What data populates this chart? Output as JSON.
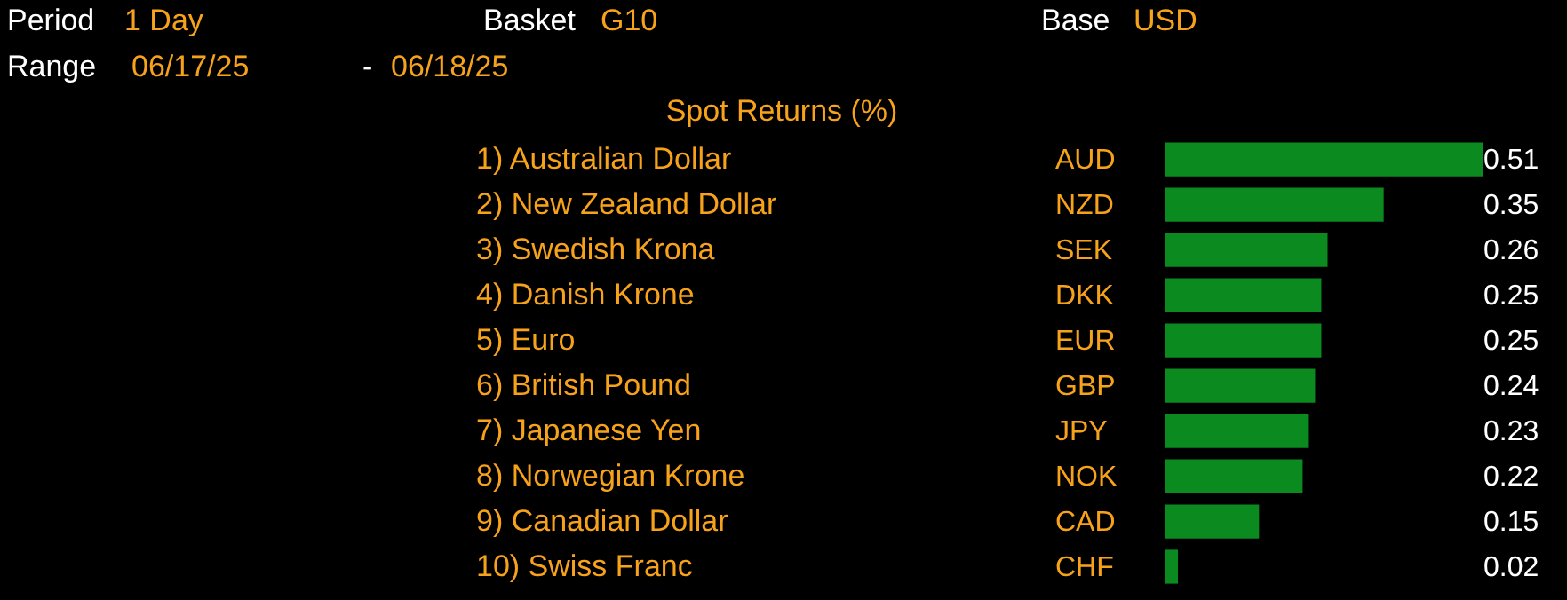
{
  "chart_data": {
    "type": "bar",
    "orientation": "horizontal",
    "title": "Spot Returns (%)",
    "categories": [
      "1) Australian Dollar",
      "2) New Zealand Dollar",
      "3) Swedish Krona",
      "4) Danish Krone",
      "5) Euro",
      "6) British Pound",
      "7) Japanese Yen",
      "8) Norwegian Krone",
      "9) Canadian Dollar",
      "10) Swiss Franc"
    ],
    "values": [
      0.51,
      0.35,
      0.26,
      0.25,
      0.25,
      0.24,
      0.23,
      0.22,
      0.15,
      0.02
    ],
    "color": "#0a8a1f",
    "data_labels": true,
    "annotations": [
      "Period",
      "1 Day",
      "Basket",
      "G10",
      "Base",
      "USD",
      "Range",
      "06/17/25",
      "-",
      "06/18/25",
      "AUD",
      "NZD",
      "SEK",
      "DKK",
      "EUR",
      "GBP",
      "JPY",
      "NOK",
      "CAD",
      "CHF"
    ]
  }
}
